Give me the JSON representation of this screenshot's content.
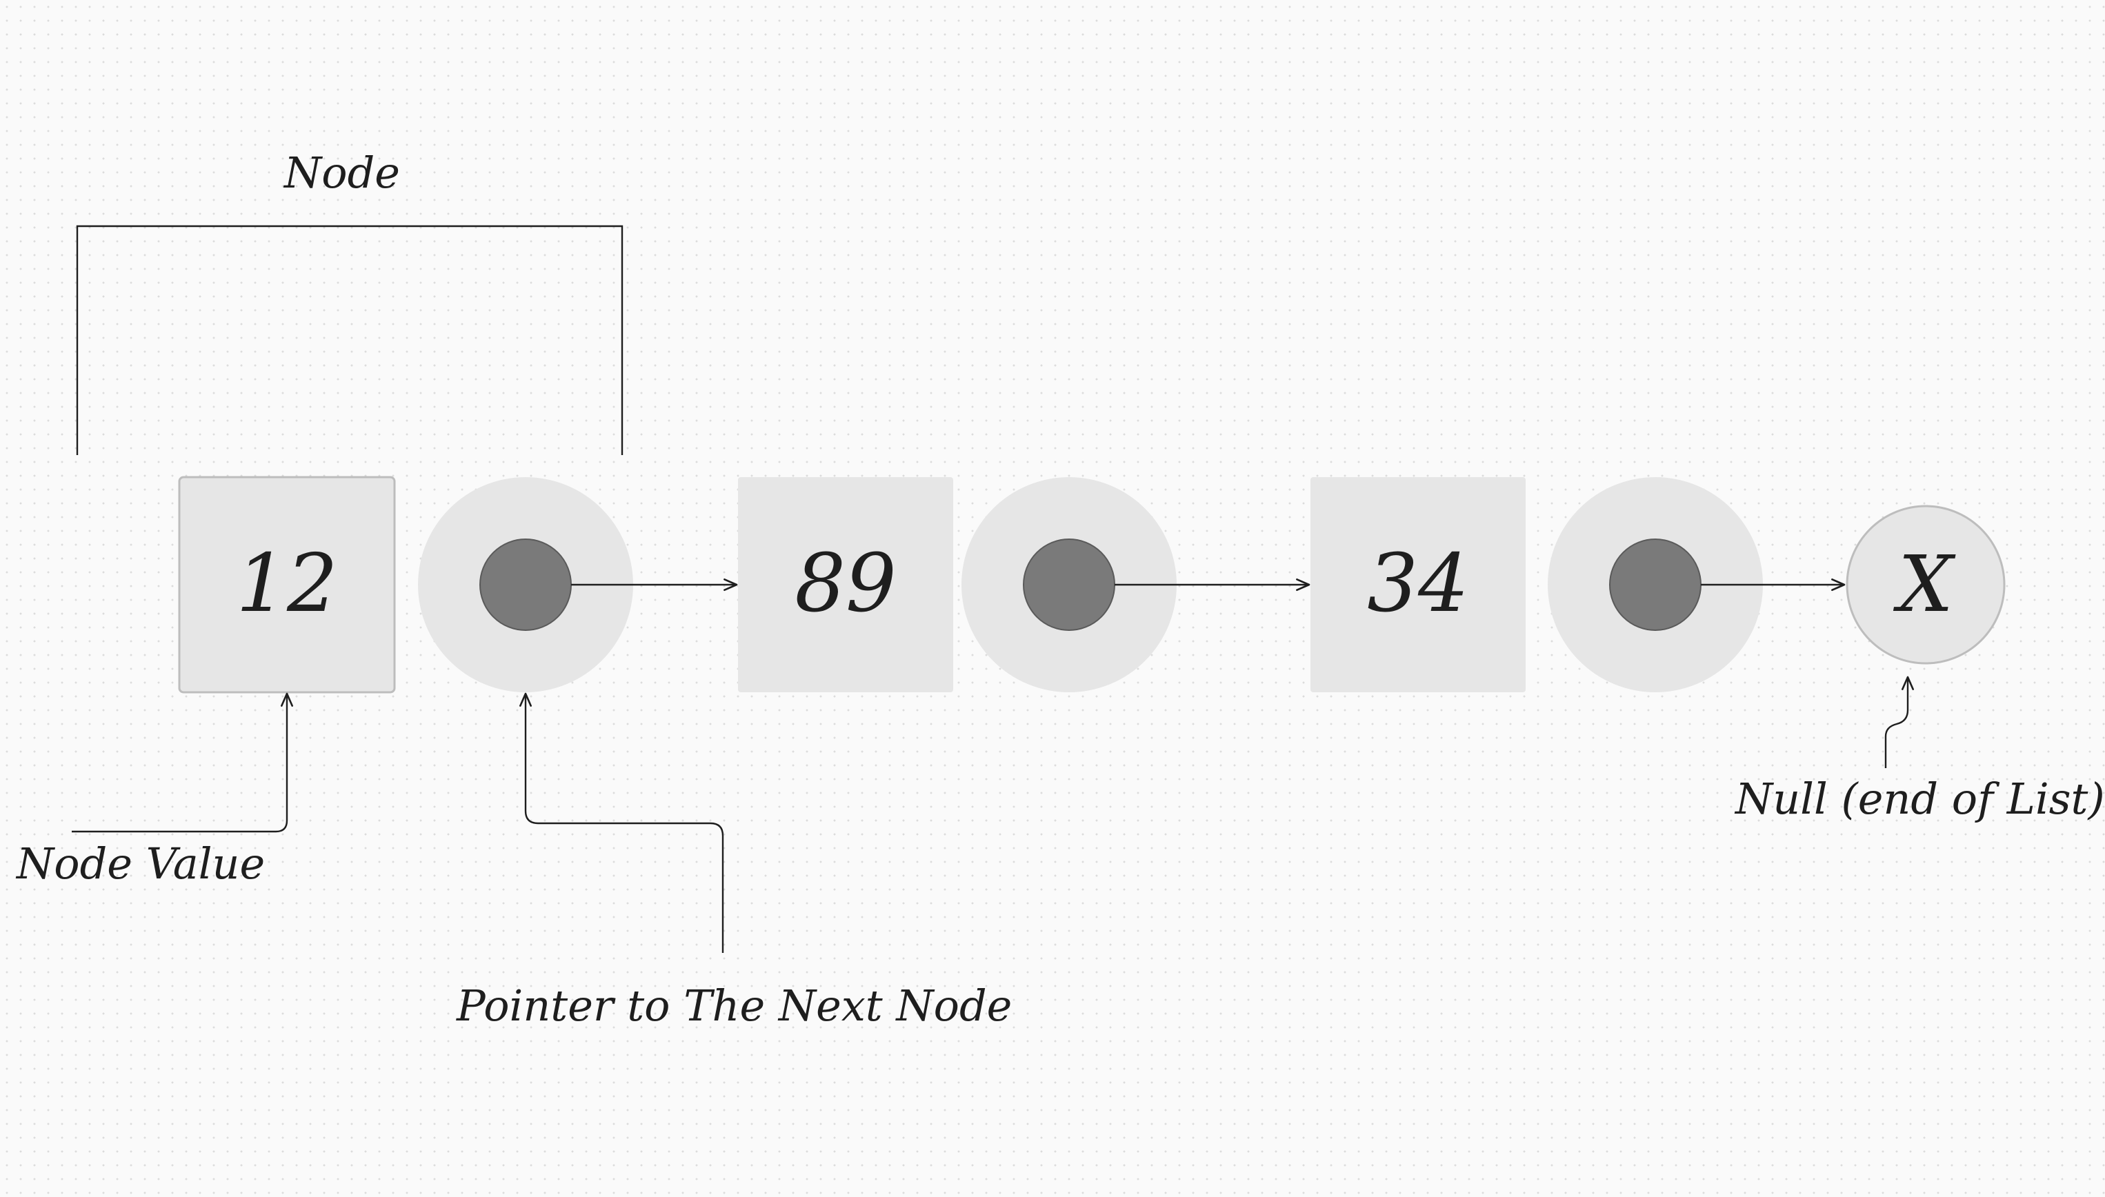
{
  "diagram": {
    "labels": {
      "node": "Node",
      "node_value": "Node Value",
      "pointer": "Pointer to The Next Node",
      "null_end": "Null (end of List)"
    },
    "nodes": [
      {
        "value": "12"
      },
      {
        "value": "89"
      },
      {
        "value": "34"
      }
    ],
    "null_symbol": "X",
    "colors": {
      "box_fill": "#e6e6e6",
      "box_border": "#bdbdbd",
      "pointer_outer": "#e6e6e6",
      "pointer_dot": "#7a7a7a",
      "ink": "#1e1e1e"
    }
  }
}
